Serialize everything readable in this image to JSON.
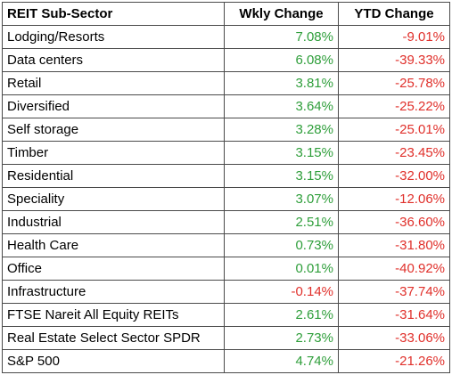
{
  "chart_data": {
    "type": "table",
    "columns": [
      "REIT Sub-Sector",
      "Wkly Change",
      "YTD Change"
    ],
    "rows": [
      {
        "sector": "Lodging/Resorts",
        "weekly": "7.08%",
        "ytd": "-9.01%"
      },
      {
        "sector": "Data centers",
        "weekly": "6.08%",
        "ytd": "-39.33%"
      },
      {
        "sector": "Retail",
        "weekly": "3.81%",
        "ytd": "-25.78%"
      },
      {
        "sector": "Diversified",
        "weekly": "3.64%",
        "ytd": "-25.22%"
      },
      {
        "sector": "Self storage",
        "weekly": "3.28%",
        "ytd": "-25.01%"
      },
      {
        "sector": "Timber",
        "weekly": "3.15%",
        "ytd": "-23.45%"
      },
      {
        "sector": "Residential",
        "weekly": "3.15%",
        "ytd": "-32.00%"
      },
      {
        "sector": "Speciality",
        "weekly": "3.07%",
        "ytd": "-12.06%"
      },
      {
        "sector": "Industrial",
        "weekly": "2.51%",
        "ytd": "-36.60%"
      },
      {
        "sector": "Health Care",
        "weekly": "0.73%",
        "ytd": "-31.80%"
      },
      {
        "sector": "Office",
        "weekly": "0.01%",
        "ytd": "-40.92%"
      },
      {
        "sector": "Infrastructure",
        "weekly": "-0.14%",
        "ytd": "-37.74%"
      },
      {
        "sector": "FTSE Nareit All Equity REITs",
        "weekly": "2.61%",
        "ytd": "-31.64%"
      },
      {
        "sector": "Real Estate Select Sector SPDR",
        "weekly": "2.73%",
        "ytd": "-33.06%"
      },
      {
        "sector": "S&P 500",
        "weekly": "4.74%",
        "ytd": "-21.26%"
      }
    ]
  },
  "colors": {
    "positive": "#2e9e3a",
    "negative": "#e0302b",
    "border": "#4a4a4a",
    "text": "#000000"
  }
}
